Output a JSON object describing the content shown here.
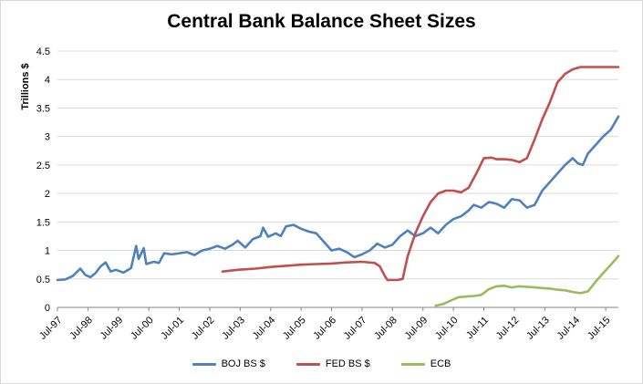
{
  "chart_data": {
    "type": "line",
    "title": "Central Bank Balance Sheet Sizes",
    "xlabel": "",
    "ylabel": "Trillions $",
    "ylim": [
      0,
      4.5
    ],
    "yticks": [
      "0",
      "0.5",
      "1",
      "1.5",
      "2",
      "2.5",
      "3",
      "3.5",
      "4",
      "4.5"
    ],
    "xticks": [
      "Jul-97",
      "Jul-98",
      "Jul-99",
      "Jul-00",
      "Jul-01",
      "Jul-02",
      "Jul-03",
      "Jul-04",
      "Jul-05",
      "Jul-06",
      "Jul-07",
      "Jul-08",
      "Jul-09",
      "Jul-10",
      "Jul-11",
      "Jul-12",
      "Jul-13",
      "Jul-14",
      "Jul-15"
    ],
    "xrange": [
      "1997-07",
      "2015-12"
    ],
    "grid": "horizontal",
    "legend_position": "bottom",
    "series": [
      {
        "name": "BOJ BS $",
        "color": "#4f81bd",
        "points": [
          [
            "1997-07",
            0.48
          ],
          [
            "1997-10",
            0.49
          ],
          [
            "1998-01",
            0.55
          ],
          [
            "1998-04",
            0.68
          ],
          [
            "1998-06",
            0.57
          ],
          [
            "1998-08",
            0.53
          ],
          [
            "1998-10",
            0.6
          ],
          [
            "1998-12",
            0.72
          ],
          [
            "1999-02",
            0.79
          ],
          [
            "1999-04",
            0.63
          ],
          [
            "1999-06",
            0.66
          ],
          [
            "1999-09",
            0.61
          ],
          [
            "1999-12",
            0.69
          ],
          [
            "2000-02",
            1.08
          ],
          [
            "2000-03",
            0.85
          ],
          [
            "2000-05",
            1.04
          ],
          [
            "2000-06",
            0.76
          ],
          [
            "2000-09",
            0.8
          ],
          [
            "2000-11",
            0.78
          ],
          [
            "2001-01",
            0.95
          ],
          [
            "2001-04",
            0.93
          ],
          [
            "2001-07",
            0.95
          ],
          [
            "2001-10",
            0.97
          ],
          [
            "2002-01",
            0.92
          ],
          [
            "2002-04",
            1.0
          ],
          [
            "2002-07",
            1.03
          ],
          [
            "2002-10",
            1.08
          ],
          [
            "2003-01",
            1.03
          ],
          [
            "2003-04",
            1.1
          ],
          [
            "2003-06",
            1.17
          ],
          [
            "2003-09",
            1.05
          ],
          [
            "2003-12",
            1.2
          ],
          [
            "2004-03",
            1.25
          ],
          [
            "2004-04",
            1.4
          ],
          [
            "2004-06",
            1.24
          ],
          [
            "2004-09",
            1.3
          ],
          [
            "2004-11",
            1.25
          ],
          [
            "2005-01",
            1.42
          ],
          [
            "2005-04",
            1.45
          ],
          [
            "2005-07",
            1.38
          ],
          [
            "2005-10",
            1.33
          ],
          [
            "2006-01",
            1.3
          ],
          [
            "2006-04",
            1.15
          ],
          [
            "2006-07",
            1.0
          ],
          [
            "2006-10",
            1.03
          ],
          [
            "2007-01",
            0.97
          ],
          [
            "2007-04",
            0.88
          ],
          [
            "2007-07",
            0.93
          ],
          [
            "2007-10",
            1.0
          ],
          [
            "2008-01",
            1.12
          ],
          [
            "2008-04",
            1.05
          ],
          [
            "2008-07",
            1.1
          ],
          [
            "2008-10",
            1.25
          ],
          [
            "2009-01",
            1.35
          ],
          [
            "2009-04",
            1.25
          ],
          [
            "2009-07",
            1.3
          ],
          [
            "2009-10",
            1.4
          ],
          [
            "2010-01",
            1.3
          ],
          [
            "2010-04",
            1.45
          ],
          [
            "2010-07",
            1.55
          ],
          [
            "2010-10",
            1.6
          ],
          [
            "2011-01",
            1.7
          ],
          [
            "2011-03",
            1.8
          ],
          [
            "2011-06",
            1.75
          ],
          [
            "2011-09",
            1.85
          ],
          [
            "2011-12",
            1.82
          ],
          [
            "2012-03",
            1.75
          ],
          [
            "2012-06",
            1.9
          ],
          [
            "2012-09",
            1.88
          ],
          [
            "2012-12",
            1.75
          ],
          [
            "2013-03",
            1.8
          ],
          [
            "2013-06",
            2.05
          ],
          [
            "2013-09",
            2.2
          ],
          [
            "2013-12",
            2.35
          ],
          [
            "2014-03",
            2.5
          ],
          [
            "2014-06",
            2.62
          ],
          [
            "2014-08",
            2.53
          ],
          [
            "2014-10",
            2.5
          ],
          [
            "2014-12",
            2.7
          ],
          [
            "2015-03",
            2.85
          ],
          [
            "2015-06",
            3.0
          ],
          [
            "2015-09",
            3.12
          ],
          [
            "2015-12",
            3.35
          ]
        ]
      },
      {
        "name": "FED BS $",
        "color": "#c0504d",
        "points": [
          [
            "2002-12",
            0.63
          ],
          [
            "2003-06",
            0.66
          ],
          [
            "2004-01",
            0.68
          ],
          [
            "2004-07",
            0.71
          ],
          [
            "2005-01",
            0.73
          ],
          [
            "2005-07",
            0.75
          ],
          [
            "2006-01",
            0.76
          ],
          [
            "2006-07",
            0.77
          ],
          [
            "2007-01",
            0.79
          ],
          [
            "2007-07",
            0.8
          ],
          [
            "2007-12",
            0.78
          ],
          [
            "2008-02",
            0.72
          ],
          [
            "2008-04",
            0.55
          ],
          [
            "2008-05",
            0.48
          ],
          [
            "2008-09",
            0.48
          ],
          [
            "2008-11",
            0.5
          ],
          [
            "2009-01",
            0.9
          ],
          [
            "2009-04",
            1.3
          ],
          [
            "2009-07",
            1.6
          ],
          [
            "2009-10",
            1.85
          ],
          [
            "2010-01",
            2.0
          ],
          [
            "2010-04",
            2.05
          ],
          [
            "2010-07",
            2.05
          ],
          [
            "2010-10",
            2.02
          ],
          [
            "2011-01",
            2.1
          ],
          [
            "2011-04",
            2.35
          ],
          [
            "2011-07",
            2.62
          ],
          [
            "2011-10",
            2.63
          ],
          [
            "2011-12",
            2.6
          ],
          [
            "2012-03",
            2.6
          ],
          [
            "2012-06",
            2.59
          ],
          [
            "2012-09",
            2.55
          ],
          [
            "2012-12",
            2.62
          ],
          [
            "2013-03",
            2.95
          ],
          [
            "2013-06",
            3.3
          ],
          [
            "2013-09",
            3.6
          ],
          [
            "2013-12",
            3.95
          ],
          [
            "2014-03",
            4.1
          ],
          [
            "2014-06",
            4.18
          ],
          [
            "2014-09",
            4.22
          ],
          [
            "2014-12",
            4.22
          ],
          [
            "2015-06",
            4.22
          ],
          [
            "2015-12",
            4.22
          ]
        ]
      },
      {
        "name": "ECB",
        "color": "#9bbb59",
        "points": [
          [
            "2009-12",
            0.03
          ],
          [
            "2010-03",
            0.06
          ],
          [
            "2010-06",
            0.12
          ],
          [
            "2010-09",
            0.18
          ],
          [
            "2010-12",
            0.19
          ],
          [
            "2011-03",
            0.2
          ],
          [
            "2011-06",
            0.22
          ],
          [
            "2011-09",
            0.32
          ],
          [
            "2011-12",
            0.37
          ],
          [
            "2012-03",
            0.38
          ],
          [
            "2012-06",
            0.35
          ],
          [
            "2012-09",
            0.37
          ],
          [
            "2012-12",
            0.36
          ],
          [
            "2013-03",
            0.35
          ],
          [
            "2013-06",
            0.34
          ],
          [
            "2013-09",
            0.33
          ],
          [
            "2013-12",
            0.31
          ],
          [
            "2014-03",
            0.3
          ],
          [
            "2014-06",
            0.27
          ],
          [
            "2014-09",
            0.25
          ],
          [
            "2014-12",
            0.28
          ],
          [
            "2015-03",
            0.45
          ],
          [
            "2015-06",
            0.6
          ],
          [
            "2015-09",
            0.75
          ],
          [
            "2015-12",
            0.9
          ]
        ]
      }
    ]
  }
}
